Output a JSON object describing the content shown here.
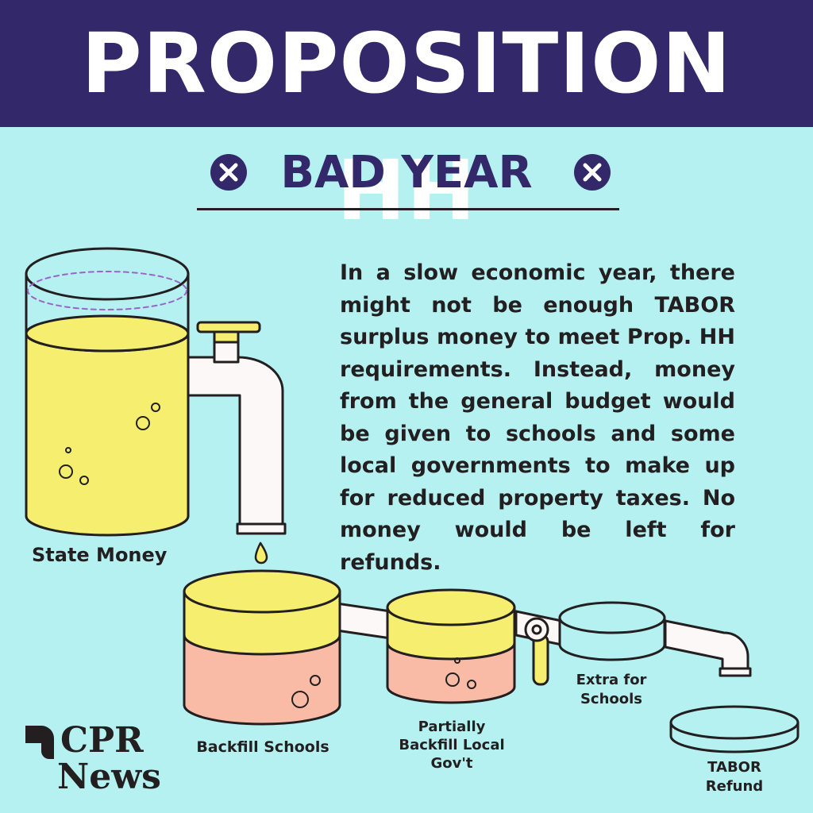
{
  "header": {
    "title": "PROPOSITION HH"
  },
  "section": {
    "subtitle": "BAD YEAR",
    "icon": "x-circle-icon"
  },
  "description": "In a slow economic year, there might not be enough TABOR surplus money to meet Prop. HH requirements. Instead, money from the general budget would be given to schools and some local governments to make up for reduced property taxes. No money would be left for refunds.",
  "diagram": {
    "source": {
      "label": "State Money"
    },
    "containers": [
      {
        "label": "Backfill Schools",
        "state": "full"
      },
      {
        "label": "Partially Backfill Local Gov't",
        "state": "partial"
      },
      {
        "label": "Extra for Schools",
        "state": "empty"
      },
      {
        "label": "TABOR Refund",
        "state": "empty"
      }
    ]
  },
  "logo": {
    "line1": "CPR",
    "line2": "News"
  },
  "colors": {
    "header_bg": "#33296a",
    "background": "#b6f1f1",
    "yellow": "#f6ee6e",
    "pink": "#f9bba5",
    "outline": "#231f20",
    "pipe": "#fbf8f7",
    "dashed_rim": "#9b64c8"
  }
}
